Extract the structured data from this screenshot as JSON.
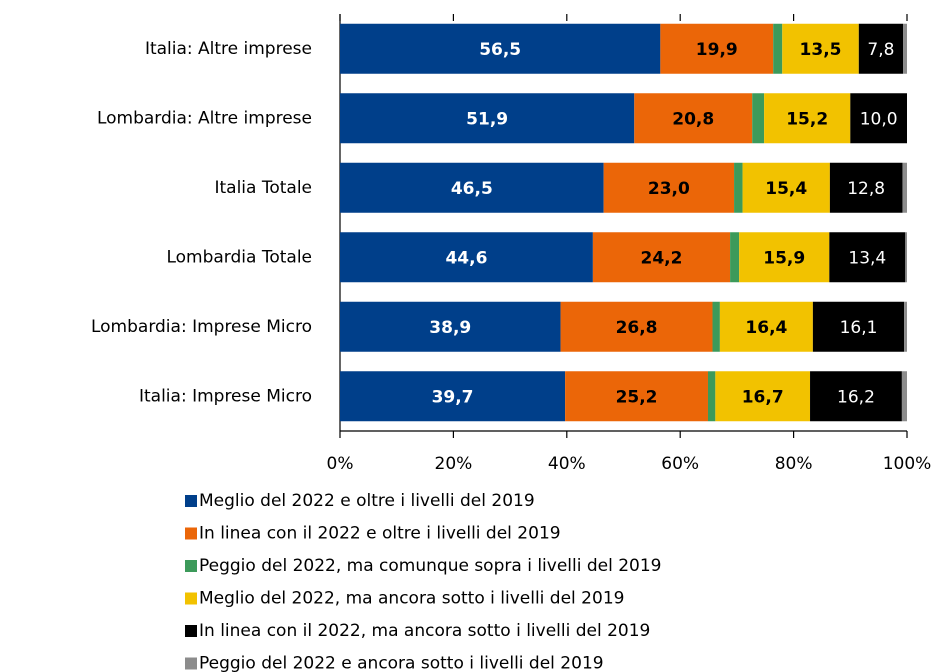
{
  "chart_data": {
    "type": "stacked-bar-horizontal",
    "categories": [
      "Italia: Altre imprese",
      "Lombardia: Altre imprese",
      "Italia Totale",
      "Lombardia Totale",
      "Lombardia: Imprese Micro",
      "Italia: Imprese Micro"
    ],
    "series": [
      {
        "name": "Meglio del 2022 e oltre i livelli del 2019",
        "color": "#003f8a",
        "values": [
          56.5,
          51.9,
          46.5,
          44.6,
          38.9,
          39.7
        ],
        "value_labels": [
          "56,5",
          "51,9",
          "46,5",
          "44,6",
          "38,9",
          "39,7"
        ]
      },
      {
        "name": "In linea con il 2022 e oltre i livelli del 2019",
        "color": "#eb6608",
        "values": [
          19.9,
          20.8,
          23.0,
          24.2,
          26.8,
          25.2
        ],
        "value_labels": [
          "19,9",
          "20,8",
          "23,0",
          "24,2",
          "26,8",
          "25,2"
        ]
      },
      {
        "name": "Peggio del 2022, ma comunque sopra i livelli del 2019",
        "color": "#3c9a5a",
        "values": [
          1.6,
          2.1,
          1.5,
          1.6,
          1.3,
          1.3
        ]
      },
      {
        "name": "Meglio del 2022, ma ancora sotto i livelli del 2019",
        "color": "#f2c200",
        "values": [
          13.5,
          15.2,
          15.4,
          15.9,
          16.4,
          16.7
        ],
        "value_labels": [
          "13,5",
          "15,2",
          "15,4",
          "15,9",
          "16,4",
          "16,7"
        ]
      },
      {
        "name": "In linea con il 2022, ma ancora sotto i livelli del 2019",
        "color": "#000000",
        "values": [
          7.8,
          10.0,
          12.8,
          13.4,
          16.1,
          16.2
        ],
        "value_labels": [
          "7,8",
          "10,0",
          "12,8",
          "13,4",
          "16,1",
          "16,2"
        ]
      },
      {
        "name": "Peggio del 2022 e ancora sotto i livelli del 2019",
        "color": "#8c8c8c",
        "values": [
          0.7,
          0.0,
          0.8,
          0.3,
          0.5,
          0.9
        ]
      }
    ],
    "xlim": [
      0,
      100
    ],
    "xticks": [
      {
        "value": 0,
        "label": "0%"
      },
      {
        "value": 20,
        "label": "20%"
      },
      {
        "value": 40,
        "label": "40%"
      },
      {
        "value": 60,
        "label": "60%"
      },
      {
        "value": 80,
        "label": "80%"
      },
      {
        "value": 100,
        "label": "100%"
      }
    ]
  }
}
